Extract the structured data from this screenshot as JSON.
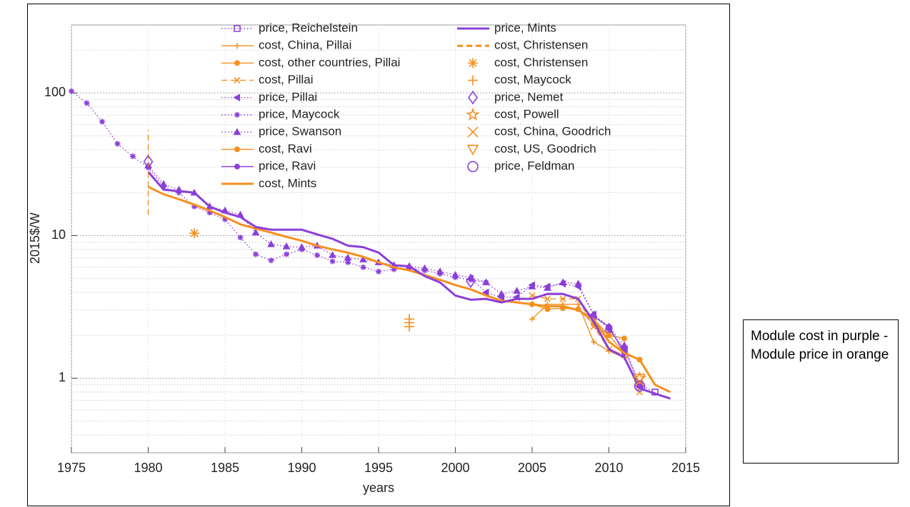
{
  "chart_data": {
    "type": "line",
    "ylabel": "2015$/W",
    "xlabel": "years",
    "xlim": [
      1975,
      2015
    ],
    "xticks": [
      1975,
      1980,
      1985,
      1990,
      1995,
      2000,
      2005,
      2010,
      2015
    ],
    "ylim": [
      0.3,
      300
    ],
    "log_y": true,
    "yticks": [
      1,
      10,
      100
    ],
    "minor_yticks": [
      0.4,
      0.5,
      0.6,
      0.7,
      0.8,
      0.9,
      2,
      3,
      4,
      5,
      6,
      7,
      8,
      9,
      20,
      30,
      40,
      50,
      60,
      70,
      80,
      90,
      200
    ],
    "grid": true,
    "legend_position": "top",
    "annotation": "Module cost in purple - Module price in orange",
    "series": [
      {
        "name": "price, Reichelstein",
        "color": "#8b3fd9",
        "line": "dotted",
        "marker": "square-open",
        "x": [
          2010,
          2011,
          2012,
          2013
        ],
        "values": [
          2.2,
          1.6,
          0.9,
          0.8
        ]
      },
      {
        "name": "cost, China, Pillai",
        "color": "#f5901e",
        "line": "solid",
        "marker": "plus",
        "x": [
          2005,
          2006,
          2007,
          2008,
          2009,
          2010,
          2011
        ],
        "values": [
          2.6,
          3.3,
          3.3,
          3.3,
          1.8,
          1.55,
          1.4
        ]
      },
      {
        "name": "cost, other countries, Pillai",
        "color": "#f5901e",
        "line": "solid",
        "marker": "dot",
        "x": [
          2005,
          2006,
          2007,
          2008,
          2009,
          2010,
          2011
        ],
        "values": [
          3.3,
          3.05,
          3.1,
          3.05,
          2.4,
          2.0,
          1.9
        ]
      },
      {
        "name": "cost, Pillai",
        "color": "#f5901e",
        "line": "dashed",
        "marker": "x",
        "x": [
          2005,
          2006,
          2007,
          2008,
          2009,
          2010,
          2011,
          2012
        ],
        "values": [
          3.8,
          3.6,
          3.6,
          3.6,
          2.3,
          1.6,
          1.45,
          0.8
        ]
      },
      {
        "name": "price, Pillai",
        "color": "#8b3fd9",
        "line": "dotted",
        "marker": "triangle-left",
        "x": [
          2001,
          2002,
          2003,
          2004,
          2005,
          2006,
          2007,
          2008,
          2009,
          2010,
          2011,
          2012
        ],
        "values": [
          5.0,
          4.0,
          3.7,
          3.7,
          4.5,
          4.4,
          4.6,
          4.4,
          2.8,
          2.2,
          1.6,
          0.88
        ]
      },
      {
        "name": "price, Maycock",
        "color": "#8b3fd9",
        "line": "dotted",
        "marker": "asterisk",
        "x": [
          1975,
          1976,
          1977,
          1978,
          1979,
          1980,
          1981,
          1982,
          1983,
          1984,
          1985,
          1986,
          1987,
          1988,
          1989,
          1990,
          1991,
          1992,
          1993,
          1994,
          1995,
          1996,
          1997,
          1998,
          1999,
          2000,
          2001,
          2002
        ],
        "values": [
          103,
          85,
          63,
          44,
          36,
          30,
          22,
          20,
          16,
          14.5,
          13,
          9.7,
          7.4,
          6.7,
          7.4,
          8.0,
          7.3,
          6.6,
          6.5,
          6.0,
          5.6,
          5.8,
          5.9,
          5.7,
          5.4,
          5.1,
          4.9,
          4.7
        ]
      },
      {
        "name": "price, Swanson",
        "color": "#8b3fd9",
        "line": "dotted",
        "marker": "triangle",
        "x": [
          1980,
          1981,
          1982,
          1983,
          1984,
          1985,
          1986,
          1987,
          1988,
          1989,
          1990,
          1991,
          1992,
          1993,
          1994,
          1995,
          1996,
          1997,
          1998,
          1999,
          2000,
          2001,
          2002,
          2003,
          2004,
          2005,
          2006,
          2007,
          2008,
          2009,
          2010,
          2011,
          2012
        ],
        "values": [
          31,
          23,
          21,
          20,
          16,
          15,
          14,
          10.5,
          8.7,
          8.4,
          8.3,
          8.5,
          7.3,
          7.0,
          6.8,
          6.5,
          6.2,
          6.1,
          5.9,
          5.6,
          5.3,
          5.1,
          4.7,
          3.9,
          4.1,
          4.4,
          4.3,
          4.7,
          4.6,
          2.8,
          2.3,
          1.7,
          0.9
        ]
      },
      {
        "name": "cost, Ravi",
        "color": "#f5901e",
        "line": "solid",
        "marker": "dot",
        "x": [
          2009,
          2010,
          2011,
          2012
        ],
        "values": [
          2.6,
          2.0,
          1.5,
          1.35
        ]
      },
      {
        "name": "price, Ravi",
        "color": "#8b3fd9",
        "line": "solid",
        "marker": "dot",
        "x": [
          2009,
          2010,
          2011
        ],
        "values": [
          2.7,
          2.3,
          1.5
        ]
      },
      {
        "name": "cost, Mints",
        "color": "#f5901e",
        "line": "solid",
        "marker": "none",
        "x": [
          1980,
          1981,
          1982,
          1983,
          1984,
          1985,
          1986,
          1987,
          1988,
          1989,
          1990,
          1991,
          1992,
          1993,
          1994,
          1995,
          1996,
          1997,
          1998,
          1999,
          2000,
          2001,
          2002,
          2003,
          2004,
          2005,
          2006,
          2007,
          2008,
          2009,
          2010,
          2011,
          2012,
          2013,
          2014
        ],
        "values": [
          22,
          19.5,
          18,
          16.5,
          15,
          13.5,
          12,
          11.2,
          10.5,
          9.8,
          9.2,
          8.5,
          8.0,
          7.6,
          7.1,
          6.5,
          6.0,
          5.7,
          5.3,
          4.9,
          4.5,
          4.2,
          3.8,
          3.5,
          3.4,
          3.3,
          3.2,
          3.2,
          3.0,
          2.6,
          1.8,
          1.5,
          1.35,
          0.9,
          0.8
        ]
      },
      {
        "name": "price, Mints",
        "color": "#8b3fd9",
        "line": "solid",
        "marker": "none",
        "x": [
          1980,
          1981,
          1982,
          1983,
          1984,
          1985,
          1986,
          1987,
          1988,
          1989,
          1990,
          1991,
          1992,
          1993,
          1994,
          1995,
          1996,
          1997,
          1998,
          1999,
          2000,
          2001,
          2002,
          2003,
          2004,
          2005,
          2006,
          2007,
          2008,
          2009,
          2010,
          2011,
          2012,
          2013,
          2014
        ],
        "values": [
          28,
          21,
          20.5,
          20,
          16,
          14.5,
          13.5,
          11.5,
          11,
          11,
          11,
          10.2,
          9.5,
          8.5,
          8.3,
          7.6,
          6.2,
          6.1,
          5.2,
          4.7,
          3.8,
          3.55,
          3.6,
          3.4,
          3.6,
          3.6,
          3.9,
          3.9,
          3.6,
          2.5,
          1.6,
          1.4,
          0.85,
          0.78,
          0.72
        ]
      },
      {
        "name": "cost, Christensen",
        "color": "#f5901e",
        "line": "dashed",
        "marker": "none",
        "x": [
          1980,
          1980
        ],
        "values": [
          14,
          55
        ]
      },
      {
        "name": "cost, Christensen",
        "color": "#f5901e",
        "line": "none",
        "marker": "asterisk",
        "x": [
          1983
        ],
        "values": [
          10.4
        ]
      },
      {
        "name": "cost, Maycock",
        "color": "#f5901e",
        "line": "none",
        "marker": "plus",
        "x": [
          1997,
          1997,
          1997
        ],
        "values": [
          2.3,
          2.45,
          2.6
        ]
      },
      {
        "name": "price, Nemet",
        "color": "#8b3fd9",
        "line": "none",
        "marker": "diamond-open",
        "x": [
          1980,
          2001
        ],
        "values": [
          33,
          4.8
        ]
      },
      {
        "name": "cost, Powell",
        "color": "#f5901e",
        "line": "none",
        "marker": "star-open",
        "x": [
          2012
        ],
        "values": [
          1.0
        ]
      },
      {
        "name": "cost, China, Goodrich",
        "color": "#f5901e",
        "line": "none",
        "marker": "x",
        "x": [
          2012
        ],
        "values": [
          0.95
        ]
      },
      {
        "name": "cost, US, Goodrich",
        "color": "#f5901e",
        "line": "none",
        "marker": "triangle-down-open",
        "x": [
          2012
        ],
        "values": [
          1.0
        ]
      },
      {
        "name": "price, Feldman",
        "color": "#8b3fd9",
        "line": "none",
        "marker": "circle-open",
        "x": [
          2012
        ],
        "values": [
          0.88
        ]
      }
    ]
  }
}
